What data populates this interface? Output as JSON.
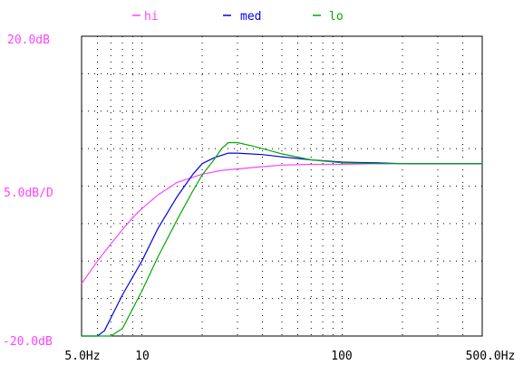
{
  "chart_data": {
    "type": "line",
    "title": "",
    "xlabel": "",
    "ylabel": "",
    "xscale": "log",
    "xlim": [
      5.0,
      500.0
    ],
    "ylim": [
      -20.0,
      20.0
    ],
    "grid": true,
    "legend_position": "top",
    "y_labels": {
      "top": "20.0dB",
      "mid": "5.0dB/D",
      "bottom": "-20.0dB"
    },
    "x_tick_labels": [
      {
        "value": 5.0,
        "text": "5.0Hz"
      },
      {
        "value": 10,
        "text": "10"
      },
      {
        "value": 100,
        "text": "100"
      },
      {
        "value": 500.0,
        "text": "500.0Hz"
      }
    ],
    "series": [
      {
        "name": "hi",
        "color": "#ff44ff",
        "x": [
          5.0,
          6.0,
          7.0,
          8.0,
          9.0,
          10,
          12,
          15,
          20,
          25,
          30,
          40,
          50,
          70,
          100,
          150,
          200,
          300,
          500
        ],
        "y": [
          -13.0,
          -10.0,
          -7.7,
          -5.8,
          -4.2,
          -3.0,
          -1.2,
          0.5,
          1.6,
          2.1,
          2.3,
          2.6,
          2.8,
          2.9,
          2.9,
          3.0,
          3.0,
          3.0,
          3.0
        ]
      },
      {
        "name": "med",
        "color": "#0000ee",
        "x": [
          5.0,
          6.0,
          6.5,
          7.0,
          8.0,
          10,
          12,
          15,
          18,
          20,
          23,
          27,
          30,
          40,
          50,
          70,
          100,
          150,
          200,
          300,
          500
        ],
        "y": [
          -20.0,
          -20.0,
          -19.3,
          -17.6,
          -14.5,
          -10.0,
          -5.7,
          -1.4,
          1.6,
          3.0,
          3.8,
          4.4,
          4.4,
          4.2,
          3.9,
          3.5,
          3.2,
          3.1,
          3.0,
          3.0,
          3.0
        ]
      },
      {
        "name": "lo",
        "color": "#00aa00",
        "x": [
          5.0,
          7.0,
          8.0,
          10,
          12,
          15,
          18,
          20,
          23,
          25,
          27,
          30,
          35,
          40,
          50,
          70,
          100,
          150,
          200,
          300,
          500
        ],
        "y": [
          -20.0,
          -20.0,
          -19.0,
          -14.0,
          -9.5,
          -4.5,
          -0.6,
          1.5,
          3.6,
          5.0,
          5.8,
          5.8,
          5.4,
          5.0,
          4.3,
          3.5,
          3.1,
          3.0,
          3.0,
          3.0,
          3.0
        ]
      }
    ]
  }
}
